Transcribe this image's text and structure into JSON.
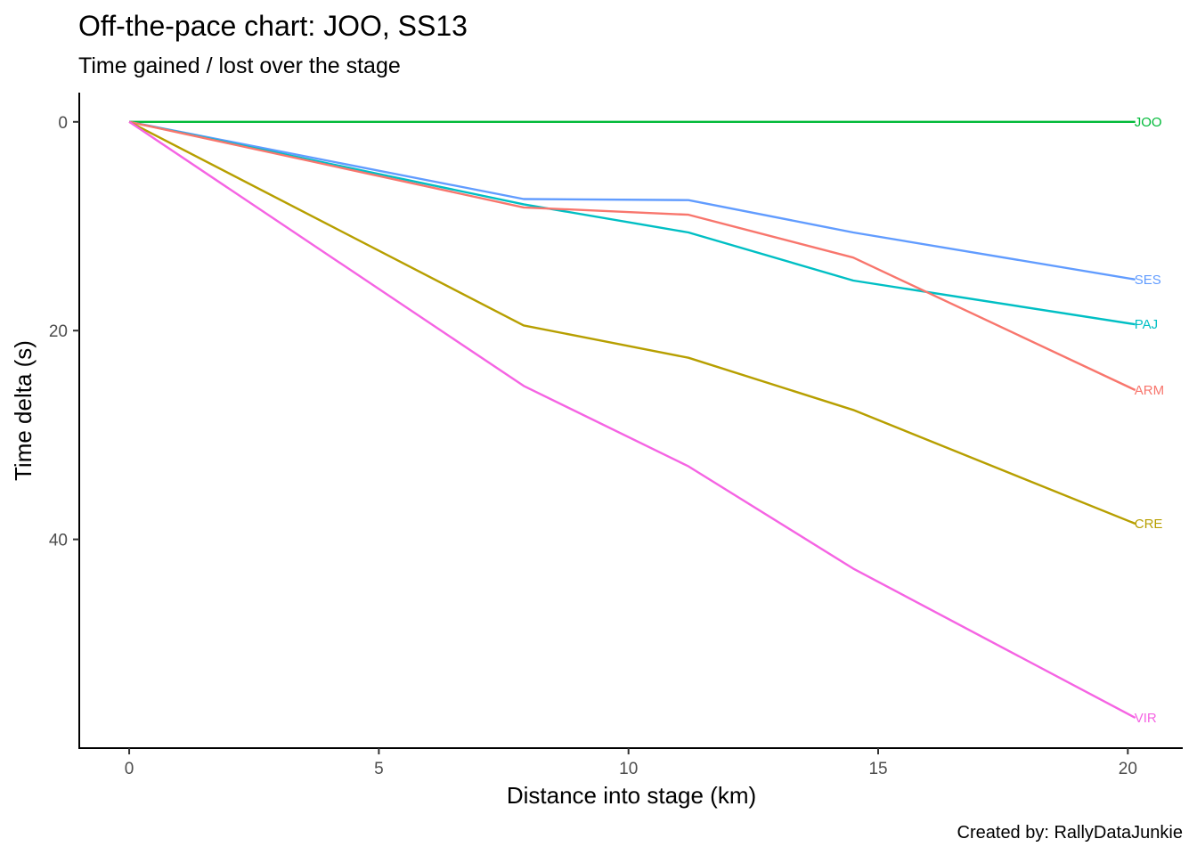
{
  "chart_data": {
    "type": "line",
    "title": "Off-the-pace chart: JOO, SS13",
    "subtitle": "Time gained / lost over the stage",
    "xlabel": "Distance into stage (km)",
    "ylabel": "Time delta (s)",
    "caption": "Created by: RallyDataJunkie",
    "xlim": [
      -1,
      21.1
    ],
    "ylim": [
      -2.8,
      60
    ],
    "y_reversed": true,
    "x_ticks": [
      0,
      5,
      10,
      15,
      20
    ],
    "y_ticks": [
      0,
      20,
      40
    ],
    "grid": false,
    "legend": "none (series labelled at line ends)",
    "series": [
      {
        "name": "JOO",
        "color": "#00BA38",
        "x": [
          0,
          7.9,
          11.2,
          14.5,
          20.15
        ],
        "y": [
          0,
          0,
          0,
          0,
          0
        ]
      },
      {
        "name": "SES",
        "color": "#619CFF",
        "x": [
          0,
          7.9,
          11.2,
          14.5,
          20.15
        ],
        "y": [
          0,
          7.4,
          7.5,
          10.6,
          15.1
        ]
      },
      {
        "name": "PAJ",
        "color": "#00BFC4",
        "x": [
          0,
          7.9,
          11.2,
          14.5,
          20.15
        ],
        "y": [
          0,
          7.9,
          10.6,
          15.2,
          19.4
        ]
      },
      {
        "name": "ARM",
        "color": "#F8766D",
        "x": [
          0,
          7.9,
          11.2,
          14.5,
          20.15
        ],
        "y": [
          0,
          8.2,
          8.9,
          13.0,
          25.7
        ]
      },
      {
        "name": "CRE",
        "color": "#B79F00",
        "x": [
          0,
          7.9,
          11.2,
          14.5,
          20.15
        ],
        "y": [
          0,
          19.5,
          22.6,
          27.6,
          38.5
        ]
      },
      {
        "name": "VIR",
        "color": "#F564E3",
        "x": [
          0,
          7.9,
          11.2,
          14.5,
          20.15
        ],
        "y": [
          0,
          25.3,
          33.0,
          42.8,
          57.1
        ]
      }
    ]
  }
}
